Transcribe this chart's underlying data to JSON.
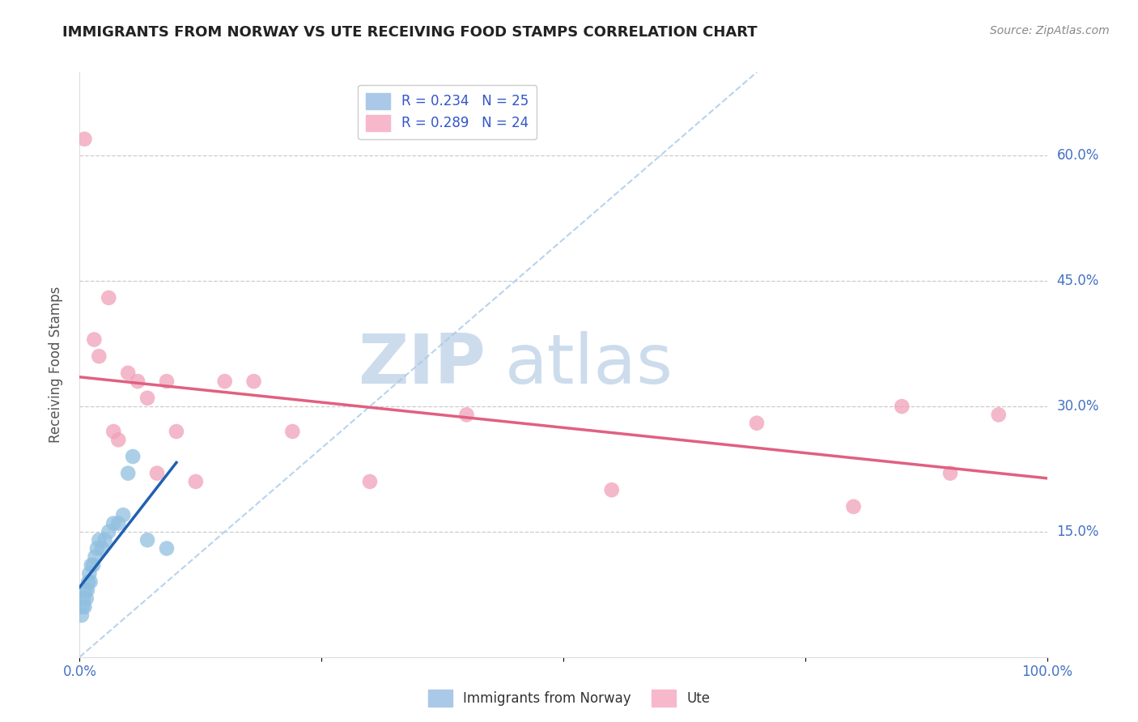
{
  "title": "IMMIGRANTS FROM NORWAY VS UTE RECEIVING FOOD STAMPS CORRELATION CHART",
  "source_text": "Source: ZipAtlas.com",
  "ylabel": "Receiving Food Stamps",
  "xlim": [
    0,
    100
  ],
  "ylim": [
    0,
    70
  ],
  "y_tick_positions": [
    15,
    30,
    45,
    60
  ],
  "y_tick_labels": [
    "15.0%",
    "30.0%",
    "45.0%",
    "60.0%"
  ],
  "norway_x": [
    0.2,
    0.3,
    0.4,
    0.5,
    0.6,
    0.7,
    0.8,
    0.9,
    1.0,
    1.1,
    1.2,
    1.4,
    1.6,
    1.8,
    2.0,
    2.3,
    2.6,
    3.0,
    3.5,
    4.0,
    4.5,
    5.0,
    5.5,
    7.0,
    9.0
  ],
  "norway_y": [
    5,
    6,
    7,
    6,
    8,
    7,
    8,
    9,
    10,
    9,
    11,
    11,
    12,
    13,
    14,
    13,
    14,
    15,
    16,
    16,
    17,
    22,
    24,
    14,
    13
  ],
  "ute_x": [
    0.5,
    1.5,
    2.0,
    3.0,
    3.5,
    4.0,
    5.0,
    6.0,
    7.0,
    8.0,
    9.0,
    10.0,
    12.0,
    15.0,
    18.0,
    22.0,
    30.0,
    40.0,
    55.0,
    70.0,
    80.0,
    85.0,
    90.0,
    95.0
  ],
  "ute_y": [
    62,
    38,
    36,
    43,
    27,
    26,
    34,
    33,
    31,
    22,
    33,
    27,
    21,
    33,
    33,
    27,
    21,
    29,
    20,
    28,
    18,
    30,
    22,
    29
  ],
  "norway_color": "#90bfe0",
  "ute_color": "#f0a0b8",
  "norway_line_color": "#2060b0",
  "ute_line_color": "#e06080",
  "diag_line_color": "#a8c8e8",
  "background_color": "#ffffff",
  "grid_color": "#cccccc",
  "title_color": "#222222",
  "axis_label_color": "#555555",
  "tick_label_color": "#4472c4",
  "source_color": "#888888",
  "watermark_zip": "ZIP",
  "watermark_atlas": "atlas",
  "watermark_color": "#ccdcec"
}
